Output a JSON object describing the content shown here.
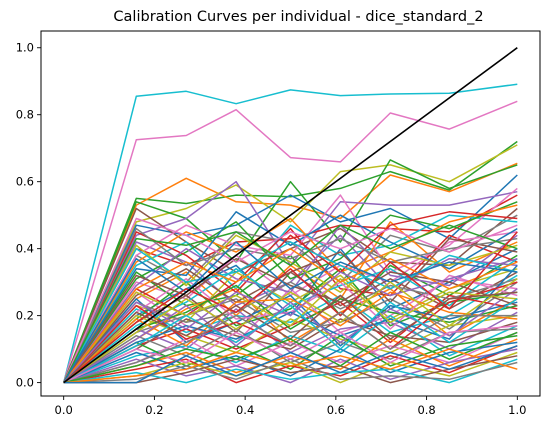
{
  "chart_data": {
    "type": "line",
    "title": "Calibration Curves per individual - dice_standard_2",
    "xlabel": "",
    "ylabel": "",
    "xlim": [
      -0.05,
      1.05
    ],
    "ylim": [
      -0.04,
      1.05
    ],
    "xticks": [
      0.0,
      0.2,
      0.4,
      0.6,
      0.8,
      1.0
    ],
    "yticks": [
      0.0,
      0.2,
      0.4,
      0.6,
      0.8,
      1.0
    ],
    "xtick_labels": [
      "0.0",
      "0.2",
      "0.4",
      "0.6",
      "0.8",
      "1.0"
    ],
    "ytick_labels": [
      "0.0",
      "0.2",
      "0.4",
      "0.6",
      "0.8",
      "1.0"
    ],
    "grid": false,
    "legend": false,
    "x": [
      0.0,
      0.16,
      0.27,
      0.38,
      0.5,
      0.61,
      0.72,
      0.85,
      1.0
    ],
    "reference_line": {
      "x": [
        0.0,
        1.0
      ],
      "y": [
        0.0,
        1.0
      ],
      "color": "#000000"
    },
    "palette": [
      "#1f77b4",
      "#ff7f0e",
      "#2ca02c",
      "#d62728",
      "#9467bd",
      "#8c564b",
      "#e377c2",
      "#7f7f7f",
      "#bcbd22",
      "#17becf"
    ],
    "series": [
      {
        "color": "#17becf",
        "values": [
          0.0,
          0.855,
          0.87,
          0.833,
          0.874,
          0.857,
          0.862,
          0.864,
          0.891
        ]
      },
      {
        "color": "#e377c2",
        "values": [
          0.0,
          0.725,
          0.738,
          0.815,
          0.672,
          0.659,
          0.805,
          0.757,
          0.84
        ]
      },
      {
        "color": "#2ca02c",
        "values": [
          0.0,
          0.55,
          0.535,
          0.56,
          0.555,
          0.58,
          0.63,
          0.575,
          0.72
        ]
      },
      {
        "color": "#ff7f0e",
        "values": [
          0.0,
          0.53,
          0.61,
          0.54,
          0.53,
          0.49,
          0.62,
          0.57,
          0.655
        ]
      },
      {
        "color": "#bcbd22",
        "values": [
          0.0,
          0.48,
          0.52,
          0.59,
          0.48,
          0.63,
          0.65,
          0.6,
          0.71
        ]
      },
      {
        "color": "#2ca02c",
        "values": [
          0.0,
          0.54,
          0.49,
          0.36,
          0.6,
          0.42,
          0.665,
          0.58,
          0.65
        ]
      },
      {
        "color": "#1f77b4",
        "values": [
          0.0,
          0.47,
          0.44,
          0.47,
          0.56,
          0.48,
          0.52,
          0.43,
          0.62
        ]
      },
      {
        "color": "#9467bd",
        "values": [
          0.0,
          0.44,
          0.49,
          0.6,
          0.35,
          0.54,
          0.53,
          0.53,
          0.57
        ]
      },
      {
        "color": "#d62728",
        "values": [
          0.0,
          0.4,
          0.35,
          0.42,
          0.43,
          0.47,
          0.46,
          0.45,
          0.56
        ]
      },
      {
        "color": "#8c564b",
        "values": [
          0.0,
          0.52,
          0.42,
          0.33,
          0.4,
          0.46,
          0.36,
          0.35,
          0.52
        ]
      },
      {
        "color": "#7f7f7f",
        "values": [
          0.0,
          0.38,
          0.3,
          0.45,
          0.42,
          0.3,
          0.44,
          0.39,
          0.5
        ]
      },
      {
        "color": "#17becf",
        "values": [
          0.0,
          0.35,
          0.42,
          0.28,
          0.47,
          0.38,
          0.41,
          0.5,
          0.48
        ]
      },
      {
        "color": "#e377c2",
        "values": [
          0.0,
          0.3,
          0.25,
          0.38,
          0.26,
          0.35,
          0.3,
          0.42,
          0.45
        ]
      },
      {
        "color": "#ff7f0e",
        "values": [
          0.0,
          0.25,
          0.33,
          0.2,
          0.35,
          0.25,
          0.48,
          0.33,
          0.42
        ]
      },
      {
        "color": "#1f77b4",
        "values": [
          0.0,
          0.2,
          0.28,
          0.35,
          0.2,
          0.4,
          0.22,
          0.3,
          0.4
        ]
      },
      {
        "color": "#2ca02c",
        "values": [
          0.0,
          0.33,
          0.23,
          0.26,
          0.38,
          0.2,
          0.35,
          0.26,
          0.38
        ]
      },
      {
        "color": "#d62728",
        "values": [
          0.0,
          0.28,
          0.2,
          0.3,
          0.46,
          0.28,
          0.26,
          0.44,
          0.36
        ]
      },
      {
        "color": "#9467bd",
        "values": [
          0.0,
          0.42,
          0.36,
          0.23,
          0.3,
          0.44,
          0.28,
          0.37,
          0.35
        ]
      },
      {
        "color": "#bcbd22",
        "values": [
          0.0,
          0.23,
          0.18,
          0.33,
          0.24,
          0.32,
          0.19,
          0.28,
          0.34
        ]
      },
      {
        "color": "#8c564b",
        "values": [
          0.0,
          0.18,
          0.26,
          0.15,
          0.33,
          0.23,
          0.31,
          0.22,
          0.33
        ]
      },
      {
        "color": "#17becf",
        "values": [
          0.0,
          0.22,
          0.15,
          0.2,
          0.18,
          0.26,
          0.15,
          0.2,
          0.32
        ]
      },
      {
        "color": "#7f7f7f",
        "values": [
          0.0,
          0.15,
          0.2,
          0.25,
          0.15,
          0.18,
          0.25,
          0.16,
          0.3
        ]
      },
      {
        "color": "#e377c2",
        "values": [
          0.0,
          0.27,
          0.17,
          0.12,
          0.28,
          0.15,
          0.2,
          0.31,
          0.28
        ]
      },
      {
        "color": "#2ca02c",
        "values": [
          0.0,
          0.19,
          0.3,
          0.17,
          0.22,
          0.34,
          0.17,
          0.24,
          0.27
        ]
      },
      {
        "color": "#ff7f0e",
        "values": [
          0.0,
          0.13,
          0.22,
          0.28,
          0.12,
          0.21,
          0.28,
          0.14,
          0.25
        ]
      },
      {
        "color": "#1f77b4",
        "values": [
          0.0,
          0.25,
          0.12,
          0.18,
          0.26,
          0.11,
          0.23,
          0.19,
          0.24
        ]
      },
      {
        "color": "#d62728",
        "values": [
          0.0,
          0.11,
          0.16,
          0.1,
          0.17,
          0.24,
          0.12,
          0.26,
          0.22
        ]
      },
      {
        "color": "#9467bd",
        "values": [
          0.0,
          0.16,
          0.1,
          0.22,
          0.09,
          0.16,
          0.18,
          0.1,
          0.21
        ]
      },
      {
        "color": "#bcbd22",
        "values": [
          0.0,
          0.2,
          0.14,
          0.09,
          0.19,
          0.13,
          0.09,
          0.17,
          0.2
        ]
      },
      {
        "color": "#8c564b",
        "values": [
          0.0,
          0.1,
          0.19,
          0.14,
          0.1,
          0.19,
          0.14,
          0.12,
          0.18
        ]
      },
      {
        "color": "#17becf",
        "values": [
          0.0,
          0.08,
          0.11,
          0.06,
          0.14,
          0.09,
          0.2,
          0.08,
          0.17
        ]
      },
      {
        "color": "#7f7f7f",
        "values": [
          0.0,
          0.14,
          0.08,
          0.16,
          0.06,
          0.12,
          0.07,
          0.15,
          0.16
        ]
      },
      {
        "color": "#e377c2",
        "values": [
          0.0,
          0.06,
          0.13,
          0.05,
          0.12,
          0.06,
          0.11,
          0.06,
          0.15
        ]
      },
      {
        "color": "#2ca02c",
        "values": [
          0.0,
          0.12,
          0.05,
          0.11,
          0.04,
          0.14,
          0.05,
          0.11,
          0.14
        ]
      },
      {
        "color": "#ff7f0e",
        "values": [
          0.0,
          0.05,
          0.09,
          0.03,
          0.08,
          0.04,
          0.13,
          0.05,
          0.13
        ]
      },
      {
        "color": "#1f77b4",
        "values": [
          0.0,
          0.09,
          0.04,
          0.08,
          0.02,
          0.1,
          0.03,
          0.09,
          0.12
        ]
      },
      {
        "color": "#d62728",
        "values": [
          0.0,
          0.04,
          0.07,
          0.0,
          0.05,
          0.02,
          0.08,
          0.03,
          0.11
        ]
      },
      {
        "color": "#9467bd",
        "values": [
          0.0,
          0.07,
          0.02,
          0.05,
          0.0,
          0.07,
          0.01,
          0.06,
          0.1
        ]
      },
      {
        "color": "#bcbd22",
        "values": [
          0.0,
          0.02,
          0.06,
          0.02,
          0.06,
          0.0,
          0.06,
          0.02,
          0.09
        ]
      },
      {
        "color": "#8c564b",
        "values": [
          0.0,
          0.0,
          0.03,
          0.07,
          0.03,
          0.05,
          0.0,
          0.04,
          0.08
        ]
      },
      {
        "color": "#17becf",
        "values": [
          0.0,
          0.03,
          0.0,
          0.04,
          0.01,
          0.03,
          0.04,
          0.0,
          0.07
        ]
      },
      {
        "color": "#7f7f7f",
        "values": [
          0.0,
          0.01,
          0.05,
          0.01,
          0.07,
          0.01,
          0.02,
          0.01,
          0.06
        ]
      },
      {
        "color": "#e377c2",
        "values": [
          0.0,
          0.38,
          0.47,
          0.41,
          0.38,
          0.56,
          0.33,
          0.41,
          0.58
        ]
      },
      {
        "color": "#2ca02c",
        "values": [
          0.0,
          0.31,
          0.39,
          0.48,
          0.31,
          0.37,
          0.5,
          0.46,
          0.54
        ]
      },
      {
        "color": "#ff7f0e",
        "values": [
          0.0,
          0.36,
          0.45,
          0.39,
          0.49,
          0.33,
          0.39,
          0.48,
          0.53
        ]
      },
      {
        "color": "#1f77b4",
        "values": [
          0.0,
          0.34,
          0.32,
          0.51,
          0.41,
          0.5,
          0.42,
          0.34,
          0.46
        ]
      },
      {
        "color": "#d62728",
        "values": [
          0.0,
          0.45,
          0.38,
          0.27,
          0.44,
          0.33,
          0.47,
          0.51,
          0.49
        ]
      },
      {
        "color": "#9467bd",
        "values": [
          0.0,
          0.29,
          0.4,
          0.31,
          0.27,
          0.47,
          0.32,
          0.29,
          0.44
        ]
      },
      {
        "color": "#bcbd22",
        "values": [
          0.0,
          0.41,
          0.29,
          0.44,
          0.36,
          0.27,
          0.39,
          0.35,
          0.41
        ]
      },
      {
        "color": "#8c564b",
        "values": [
          0.0,
          0.26,
          0.34,
          0.24,
          0.33,
          0.39,
          0.24,
          0.43,
          0.39
        ]
      },
      {
        "color": "#17becf",
        "values": [
          0.0,
          0.17,
          0.24,
          0.34,
          0.23,
          0.29,
          0.34,
          0.23,
          0.37
        ]
      },
      {
        "color": "#7f7f7f",
        "values": [
          0.0,
          0.24,
          0.18,
          0.21,
          0.3,
          0.22,
          0.29,
          0.25,
          0.31
        ]
      },
      {
        "color": "#e377c2",
        "values": [
          0.0,
          0.21,
          0.31,
          0.19,
          0.21,
          0.3,
          0.16,
          0.32,
          0.26
        ]
      },
      {
        "color": "#2ca02c",
        "values": [
          0.0,
          0.16,
          0.21,
          0.29,
          0.16,
          0.25,
          0.21,
          0.18,
          0.23
        ]
      },
      {
        "color": "#ff7f0e",
        "values": [
          0.0,
          0.19,
          0.11,
          0.24,
          0.25,
          0.17,
          0.27,
          0.21,
          0.19
        ]
      },
      {
        "color": "#1f77b4",
        "values": [
          0.0,
          0.12,
          0.17,
          0.13,
          0.21,
          0.14,
          0.19,
          0.13,
          0.35
        ]
      },
      {
        "color": "#d62728",
        "values": [
          0.0,
          0.23,
          0.13,
          0.18,
          0.11,
          0.21,
          0.1,
          0.24,
          0.3
        ]
      },
      {
        "color": "#9467bd",
        "values": [
          0.0,
          0.13,
          0.23,
          0.11,
          0.24,
          0.12,
          0.22,
          0.14,
          0.28
        ]
      },
      {
        "color": "#bcbd22",
        "values": [
          0.0,
          0.27,
          0.2,
          0.26,
          0.17,
          0.31,
          0.18,
          0.27,
          0.25
        ]
      },
      {
        "color": "#8c564b",
        "values": [
          0.0,
          0.32,
          0.26,
          0.37,
          0.29,
          0.24,
          0.33,
          0.3,
          0.23
        ]
      },
      {
        "color": "#17becf",
        "values": [
          0.0,
          0.4,
          0.3,
          0.33,
          0.42,
          0.35,
          0.28,
          0.38,
          0.33
        ]
      },
      {
        "color": "#7f7f7f",
        "values": [
          0.0,
          0.46,
          0.35,
          0.4,
          0.37,
          0.43,
          0.36,
          0.4,
          0.43
        ]
      },
      {
        "color": "#e377c2",
        "values": [
          0.0,
          0.49,
          0.44,
          0.36,
          0.45,
          0.4,
          0.46,
          0.39,
          0.47
        ]
      },
      {
        "color": "#2ca02c",
        "values": [
          0.0,
          0.43,
          0.41,
          0.45,
          0.35,
          0.47,
          0.4,
          0.47,
          0.4
        ]
      },
      {
        "color": "#ff7f0e",
        "values": [
          0.0,
          0.28,
          0.36,
          0.3,
          0.4,
          0.3,
          0.37,
          0.28,
          0.36
        ]
      },
      {
        "color": "#1f77b4",
        "values": [
          0.0,
          0.37,
          0.27,
          0.42,
          0.28,
          0.36,
          0.3,
          0.36,
          0.33
        ]
      },
      {
        "color": "#d62728",
        "values": [
          0.0,
          0.18,
          0.28,
          0.21,
          0.34,
          0.2,
          0.36,
          0.22,
          0.45
        ]
      },
      {
        "color": "#9467bd",
        "values": [
          0.0,
          0.24,
          0.16,
          0.27,
          0.2,
          0.33,
          0.26,
          0.31,
          0.37
        ]
      },
      {
        "color": "#bcbd22",
        "values": [
          0.0,
          0.15,
          0.25,
          0.16,
          0.27,
          0.18,
          0.3,
          0.17,
          0.31
        ]
      },
      {
        "color": "#8c564b",
        "values": [
          0.0,
          0.21,
          0.14,
          0.23,
          0.13,
          0.26,
          0.13,
          0.25,
          0.27
        ]
      },
      {
        "color": "#17becf",
        "values": [
          0.0,
          0.11,
          0.2,
          0.12,
          0.23,
          0.1,
          0.24,
          0.12,
          0.25
        ]
      },
      {
        "color": "#7f7f7f",
        "values": [
          0.0,
          0.06,
          0.12,
          0.2,
          0.11,
          0.21,
          0.1,
          0.2,
          0.2
        ]
      },
      {
        "color": "#e377c2",
        "values": [
          0.0,
          0.1,
          0.06,
          0.15,
          0.07,
          0.15,
          0.06,
          0.15,
          0.17
        ]
      },
      {
        "color": "#2ca02c",
        "values": [
          0.0,
          0.05,
          0.1,
          0.07,
          0.13,
          0.05,
          0.15,
          0.07,
          0.15
        ]
      },
      {
        "color": "#ff7f0e",
        "values": [
          0.0,
          0.02,
          0.04,
          0.09,
          0.05,
          0.08,
          0.04,
          0.1,
          0.04
        ]
      },
      {
        "color": "#1f77b4",
        "values": [
          0.0,
          0.0,
          0.08,
          0.02,
          0.09,
          0.03,
          0.09,
          0.04,
          0.11
        ]
      }
    ]
  }
}
